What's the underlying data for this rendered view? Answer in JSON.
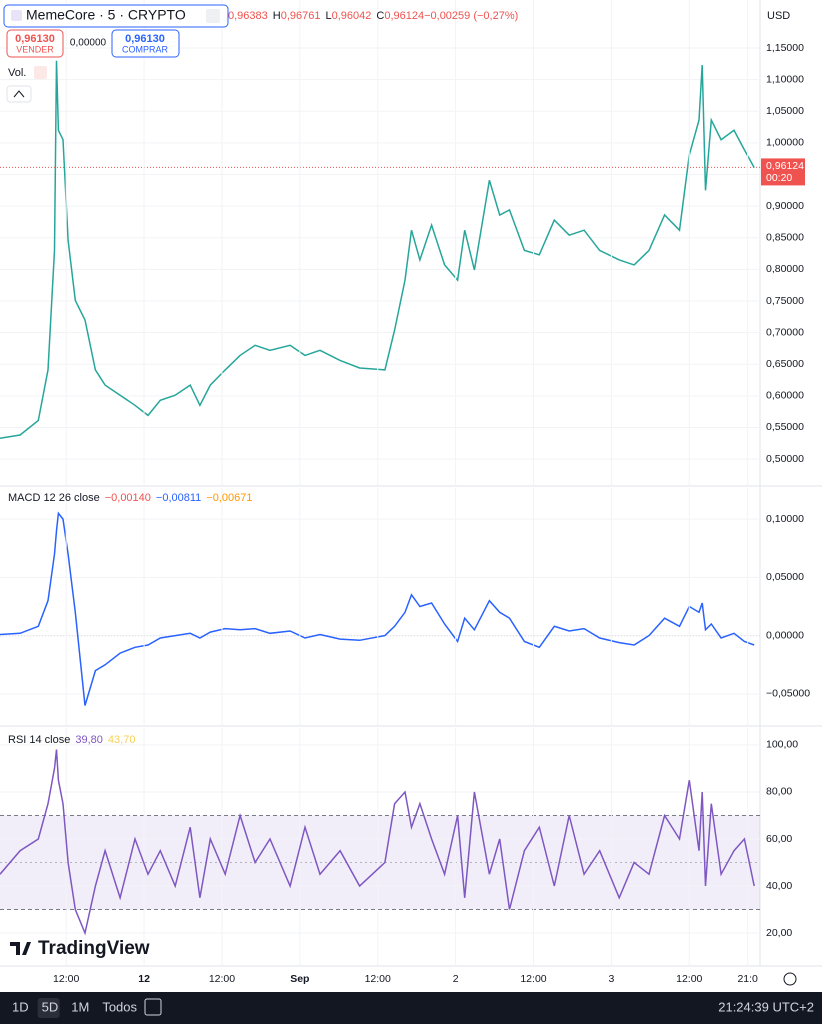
{
  "header": {
    "symbol": "MemeCore · 5 · CRYPTO",
    "ohlc": [
      "0,96383",
      "H",
      "0,96761",
      "L",
      "0,96042",
      "C",
      "0,96124",
      "−0,00259 (−0,27%)"
    ],
    "currency": "USD"
  },
  "trade": {
    "sell_price": "0,96130",
    "sell_label": "VENDER",
    "spread": "0,00000",
    "buy_price": "0,96130",
    "buy_label": "COMPRAR"
  },
  "volume_label": "Vol.",
  "logo": "TradingView",
  "bottom_bar": {
    "ranges": [
      "1D",
      "5D",
      "1M",
      "Todos"
    ],
    "clock": "21:24:39 UTC+2"
  },
  "chart_data": [
    {
      "type": "line",
      "color": "#26a69a",
      "x": [
        -10.2,
        -7.1,
        -4.3,
        -2.8,
        -1.8,
        -1.5,
        -1.2,
        -0.5,
        0.3,
        1.4,
        2.9,
        4.5,
        6.0,
        8.3,
        10.6,
        12.6,
        14.5,
        16.8,
        19.1,
        20.6,
        22.2,
        24.5,
        26.8,
        29.1,
        31.4,
        34.5,
        36.8,
        39.1,
        42.2,
        45.2,
        49.1,
        50.6,
        52.2,
        53.2,
        54.5,
        56.3,
        58.3,
        60.3,
        61.4,
        62.9,
        65.2,
        66.8,
        68.3,
        70.6,
        72.9,
        75.2,
        77.5,
        79.8,
        82.2,
        85.2,
        87.5,
        89.8,
        92.2,
        94.5,
        96.0,
        97.5,
        98.0,
        98.5,
        99.4,
        100.9,
        102.9,
        104.5,
        106.0
      ],
      "values": [
        0.533,
        0.538,
        0.561,
        0.641,
        0.83,
        1.13,
        1.02,
        1.005,
        0.846,
        0.751,
        0.72,
        0.641,
        0.617,
        0.601,
        0.585,
        0.569,
        0.593,
        0.601,
        0.617,
        0.585,
        0.617,
        0.641,
        0.664,
        0.68,
        0.672,
        0.68,
        0.664,
        0.672,
        0.656,
        0.644,
        0.641,
        0.704,
        0.783,
        0.862,
        0.815,
        0.87,
        0.807,
        0.783,
        0.862,
        0.799,
        0.941,
        0.886,
        0.894,
        0.83,
        0.823,
        0.878,
        0.854,
        0.862,
        0.83,
        0.815,
        0.807,
        0.83,
        0.886,
        0.862,
        0.981,
        1.036,
        1.123,
        0.925,
        1.036,
        1.005,
        1.02,
        0.989,
        0.961
      ],
      "xlim": [
        -10.2,
        106.9
      ],
      "ylim": [
        0.459,
        1.226
      ],
      "yticks": [
        {
          "value": 0.5,
          "label": "0,50000"
        },
        {
          "value": 0.55,
          "label": "0,55000"
        },
        {
          "value": 0.6,
          "label": "0,60000"
        },
        {
          "value": 0.65,
          "label": "0,65000"
        },
        {
          "value": 0.7,
          "label": "0,70000"
        },
        {
          "value": 0.75,
          "label": "0,75000"
        },
        {
          "value": 0.8,
          "label": "0,80000"
        },
        {
          "value": 0.85,
          "label": "0,85000"
        },
        {
          "value": 0.9,
          "label": "0,90000"
        },
        {
          "value": 0.95,
          "label": "0,95000"
        },
        {
          "value": 1.0,
          "label": "1,00000"
        },
        {
          "value": 1.05,
          "label": "1,05000"
        },
        {
          "value": 1.1,
          "label": "1,10000"
        },
        {
          "value": 1.15,
          "label": "1,15000"
        }
      ],
      "last_price": {
        "value": 0.96124,
        "label": "0,96124",
        "countdown": "00:20"
      },
      "grid": true
    },
    {
      "type": "line",
      "title": "MACD 12 26 close",
      "color": "#2962ff",
      "legend_values": [
        "−0,00140",
        "−0,00811",
        "−0,00671"
      ],
      "legend_colors": [
        "#ef5350",
        "#2962ff",
        "#ff9800"
      ],
      "x": [
        -10.2,
        -7.1,
        -4.3,
        -2.8,
        -1.8,
        -1.5,
        -1.2,
        -0.5,
        0.3,
        1.4,
        2.9,
        4.5,
        6.0,
        8.3,
        10.6,
        12.6,
        14.5,
        16.8,
        19.1,
        20.6,
        22.2,
        24.5,
        26.8,
        29.1,
        31.4,
        34.5,
        36.8,
        39.1,
        42.2,
        45.2,
        49.1,
        50.6,
        52.2,
        53.2,
        54.5,
        56.3,
        58.3,
        60.3,
        61.4,
        62.9,
        65.2,
        66.8,
        68.3,
        70.6,
        72.9,
        75.2,
        77.5,
        79.8,
        82.2,
        85.2,
        87.5,
        89.8,
        92.2,
        94.5,
        96.0,
        97.5,
        98.0,
        98.5,
        99.4,
        100.9,
        102.9,
        104.5,
        106.0
      ],
      "values": [
        0.001,
        0.002,
        0.008,
        0.03,
        0.07,
        0.09,
        0.105,
        0.1,
        0.07,
        0.02,
        -0.06,
        -0.03,
        -0.025,
        -0.015,
        -0.01,
        -0.008,
        -0.002,
        0.0,
        0.002,
        -0.002,
        0.003,
        0.006,
        0.005,
        0.006,
        0.002,
        0.004,
        -0.002,
        0.001,
        -0.003,
        -0.004,
        0.0,
        0.008,
        0.02,
        0.035,
        0.025,
        0.028,
        0.01,
        -0.005,
        0.015,
        0.005,
        0.03,
        0.02,
        0.015,
        -0.005,
        -0.01,
        0.008,
        0.004,
        0.006,
        -0.002,
        -0.006,
        -0.008,
        0.0,
        0.015,
        0.008,
        0.025,
        0.02,
        0.028,
        0.005,
        0.01,
        -0.002,
        0.002,
        -0.005,
        -0.008
      ],
      "xlim": [
        -10.2,
        106.9
      ],
      "ylim": [
        -0.0767,
        0.1267
      ],
      "yticks": [
        {
          "value": -0.05,
          "label": "−0,05000"
        },
        {
          "value": 0,
          "label": "0,00000"
        },
        {
          "value": 0.05,
          "label": "0,05000"
        },
        {
          "value": 0.1,
          "label": "0,10000"
        }
      ],
      "zero_line": 0,
      "grid": true
    },
    {
      "type": "line",
      "title": "RSI 14 close",
      "color": "#7e57c2",
      "legend_values": [
        "39,80",
        "43,70"
      ],
      "legend_colors": [
        "#7e57c2",
        "#f7d154"
      ],
      "x": [
        -10.2,
        -7.1,
        -4.3,
        -2.8,
        -1.8,
        -1.5,
        -1.2,
        -0.5,
        0.3,
        1.4,
        2.9,
        4.5,
        6.0,
        8.3,
        10.6,
        12.6,
        14.5,
        16.8,
        19.1,
        20.6,
        22.2,
        24.5,
        26.8,
        29.1,
        31.4,
        34.5,
        36.8,
        39.1,
        42.2,
        45.2,
        49.1,
        50.6,
        52.2,
        53.2,
        54.5,
        56.3,
        58.3,
        60.3,
        61.4,
        62.9,
        65.2,
        66.8,
        68.3,
        70.6,
        72.9,
        75.2,
        77.5,
        79.8,
        82.2,
        85.2,
        87.5,
        89.8,
        92.2,
        94.5,
        96.0,
        97.5,
        98.0,
        98.5,
        99.4,
        100.9,
        102.9,
        104.5,
        106.0
      ],
      "values": [
        45,
        55,
        60,
        75,
        90,
        98,
        85,
        75,
        50,
        30,
        20,
        40,
        55,
        35,
        60,
        45,
        55,
        40,
        65,
        35,
        60,
        45,
        70,
        50,
        60,
        40,
        65,
        45,
        55,
        40,
        50,
        75,
        80,
        65,
        75,
        60,
        45,
        70,
        35,
        80,
        45,
        60,
        30,
        55,
        65,
        40,
        70,
        45,
        55,
        35,
        50,
        45,
        70,
        60,
        85,
        55,
        80,
        40,
        75,
        45,
        55,
        60,
        40
      ],
      "xlim": [
        -10.2,
        106.9
      ],
      "ylim": [
        6.4,
        107.2
      ],
      "yticks": [
        {
          "value": 20,
          "label": "20,00"
        },
        {
          "value": 40,
          "label": "40,00"
        },
        {
          "value": 60,
          "label": "60,00"
        },
        {
          "value": 80,
          "label": "80,00"
        },
        {
          "value": 100,
          "label": "100,00"
        }
      ],
      "bands": [
        30,
        70
      ],
      "midline": 50,
      "xticks": [
        {
          "value": 0,
          "label": "12:00"
        },
        12,
        {
          "value": 24,
          "label": "12:00"
        },
        {
          "value": 36,
          "label": "Sep"
        },
        {
          "value": 48,
          "label": "12:00"
        },
        {
          "value": 60,
          "label": "2"
        },
        {
          "value": 72,
          "label": "12:00"
        },
        {
          "value": 84,
          "label": "3"
        },
        {
          "value": 96,
          "label": "12:00"
        },
        {
          "value": 105,
          "label": "21:0"
        }
      ],
      "grid": true
    }
  ]
}
